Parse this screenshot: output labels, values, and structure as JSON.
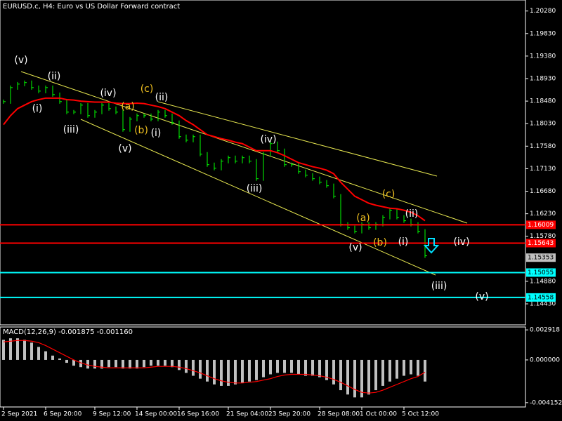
{
  "chart_data": [
    {
      "type": "price",
      "title": "EURUSD.c, H4:  Euro vs US Dollar Forward contract",
      "categories": [
        "2 Sep 2021",
        null,
        null,
        null,
        null,
        null,
        "6 Sep 20:00",
        null,
        null,
        null,
        null,
        null,
        null,
        "9 Sep 12:00",
        null,
        null,
        null,
        null,
        null,
        "14 Sep 00:00",
        null,
        null,
        null,
        null,
        null,
        "16 Sep 16:00",
        null,
        null,
        null,
        null,
        null,
        null,
        "21 Sep 04:00",
        null,
        null,
        null,
        null,
        null,
        "23 Sep 20:00",
        null,
        null,
        null,
        null,
        null,
        null,
        "28 Sep 08:00",
        null,
        null,
        null,
        null,
        null,
        "1 Oct 00:00",
        null,
        null,
        null,
        null,
        null,
        "5 Oct 12:00",
        null,
        null,
        null
      ],
      "series": [
        {
          "color": "#00ff00",
          "values": [
            1.1847,
            1.1875,
            1.1882,
            1.1885,
            1.1875,
            1.1868,
            1.1875,
            1.1861,
            1.1847,
            1.1826,
            1.1826,
            1.184,
            1.1819,
            1.1826,
            1.184,
            1.1833,
            1.1826,
            1.1791,
            1.1812,
            1.1819,
            1.1819,
            1.1812,
            1.1826,
            1.1819,
            1.1805,
            1.1777,
            1.177,
            1.1777,
            1.1742,
            1.1721,
            1.1714,
            1.1728,
            1.1735,
            1.1728,
            1.1735,
            1.1728,
            1.1693,
            1.1742,
            1.1763,
            1.1749,
            1.1721,
            1.1721,
            1.1707,
            1.17,
            1.1693,
            1.1686,
            1.1679,
            1.1658,
            1.1602,
            1.1595,
            1.1588,
            1.1602,
            1.1595,
            1.1602,
            1.1616,
            1.163,
            1.1616,
            1.1609,
            1.1602,
            1.1588,
            1.1539
          ]
        },
        {
          "color": "#ff0000",
          "values": [
            1.1801,
            1.1819,
            1.1833,
            1.184,
            1.1847,
            1.1851,
            1.1854,
            1.1854,
            1.1854,
            1.1851,
            1.185,
            1.1848,
            1.1847,
            1.1846,
            1.1846,
            1.1846,
            1.1844,
            1.1843,
            1.1843,
            1.1844,
            1.1843,
            1.184,
            1.1837,
            1.1833,
            1.1826,
            1.1819,
            1.1809,
            1.1801,
            1.1791,
            1.1781,
            1.1777,
            1.1773,
            1.177,
            1.1766,
            1.1763,
            1.1756,
            1.1749,
            1.1749,
            1.1749,
            1.1745,
            1.1739,
            1.1732,
            1.1725,
            1.1721,
            1.1717,
            1.1714,
            1.171,
            1.1703,
            1.1686,
            1.1672,
            1.1658,
            1.1651,
            1.1644,
            1.164,
            1.1637,
            1.1634,
            1.1633,
            1.163,
            1.1626,
            1.1619,
            1.1609
          ]
        }
      ],
      "ylim": [
        1.1401,
        1.205
      ],
      "yticks": [
        {
          "value": 1.2028,
          "label": "1.20280"
        },
        {
          "value": 1.1983,
          "label": "1.19830"
        },
        {
          "value": 1.1938,
          "label": "1.19380"
        },
        {
          "value": 1.1893,
          "label": "1.18930"
        },
        {
          "value": 1.1848,
          "label": "1.18480"
        },
        {
          "value": 1.1803,
          "label": "1.18030"
        },
        {
          "value": 1.1758,
          "label": "1.17580"
        },
        {
          "value": 1.1713,
          "label": "1.17130"
        },
        {
          "value": 1.1668,
          "label": "1.16680"
        },
        {
          "value": 1.1623,
          "label": "1.16230"
        },
        {
          "value": 1.1578,
          "label": "1.15780"
        },
        {
          "value": 1.1488,
          "label": "1.14880"
        },
        {
          "value": 1.1443,
          "label": "1.14430"
        }
      ],
      "levels": [
        {
          "value": 1.16009,
          "color": "#ff0000"
        },
        {
          "value": 1.15643,
          "color": "#ff0000"
        },
        {
          "value": 1.15055,
          "color": "#00ffff"
        },
        {
          "value": 1.14558,
          "color": "#00ffff"
        }
      ],
      "last_price": 1.15353,
      "annotations": [
        {
          "text": "(v)",
          "color": "#ffffff"
        },
        {
          "text": "(ii)",
          "color": "#ffffff"
        },
        {
          "text": "(i)",
          "color": "#ffffff"
        },
        {
          "text": "(iii)",
          "color": "#ffffff"
        },
        {
          "text": "(iv)",
          "color": "#ffffff"
        },
        {
          "text": "(c)",
          "color": "#f0c020"
        },
        {
          "text": "(ii)",
          "color": "#ffffff"
        },
        {
          "text": "(a)",
          "color": "#f0c020"
        },
        {
          "text": "(b)",
          "color": "#f0c020"
        },
        {
          "text": "(i)",
          "color": "#ffffff"
        },
        {
          "text": "(v)",
          "color": "#ffffff"
        },
        {
          "text": "(iv)",
          "color": "#ffffff"
        },
        {
          "text": "(iii)",
          "color": "#ffffff"
        },
        {
          "text": "(c)",
          "color": "#f0c020"
        },
        {
          "text": "(a)",
          "color": "#f0c020"
        },
        {
          "text": "(ii)",
          "color": "#ffffff"
        },
        {
          "text": "(b)",
          "color": "#f0c020"
        },
        {
          "text": "(i)",
          "color": "#ffffff"
        },
        {
          "text": "(v)",
          "color": "#ffffff"
        },
        {
          "text": "(iv)",
          "color": "#ffffff"
        },
        {
          "text": "(iii)",
          "color": "#ffffff"
        },
        {
          "text": "(v)",
          "color": "#ffffff"
        }
      ]
    },
    {
      "type": "macd",
      "title": "MACD(12,26,9) -0.001875 -0.001160",
      "series": [
        {
          "color": "#c0c0c0",
          "values": [
            0.00196,
            0.0021,
            0.0021,
            0.00196,
            0.00168,
            0.00126,
            0.00084,
            0.00042,
            0.00014,
            -0.00028,
            -0.00056,
            -0.0007,
            -0.00084,
            -0.00084,
            -0.00084,
            -0.0007,
            -0.0007,
            -0.00084,
            -0.00084,
            -0.00084,
            -0.0007,
            -0.00056,
            -0.00056,
            -0.00056,
            -0.0007,
            -0.00098,
            -0.00126,
            -0.00154,
            -0.00182,
            -0.0021,
            -0.00238,
            -0.00252,
            -0.00252,
            -0.00238,
            -0.00224,
            -0.0021,
            -0.00196,
            -0.00168,
            -0.0014,
            -0.00126,
            -0.00126,
            -0.00126,
            -0.0014,
            -0.00154,
            -0.00154,
            -0.00168,
            -0.00196,
            -0.00238,
            -0.00294,
            -0.00336,
            -0.00364,
            -0.00364,
            -0.00336,
            -0.00294,
            -0.00252,
            -0.0021,
            -0.00182,
            -0.00154,
            -0.0014,
            -0.00154,
            -0.0021
          ]
        },
        {
          "color": "#ff0000",
          "values": [
            0.00175,
            0.00182,
            0.00189,
            0.00189,
            0.00182,
            0.00168,
            0.0014,
            0.00105,
            0.0007,
            0.00035,
            0,
            -0.00028,
            -0.00049,
            -0.00063,
            -0.0007,
            -0.00077,
            -0.00077,
            -0.00077,
            -0.00077,
            -0.00077,
            -0.00077,
            -0.0007,
            -0.00063,
            -0.00063,
            -0.00063,
            -0.0007,
            -0.00084,
            -0.00105,
            -0.00126,
            -0.00154,
            -0.00182,
            -0.00203,
            -0.00217,
            -0.00224,
            -0.00224,
            -0.00217,
            -0.0021,
            -0.00196,
            -0.00182,
            -0.00161,
            -0.00147,
            -0.0014,
            -0.0014,
            -0.0014,
            -0.00147,
            -0.00154,
            -0.00168,
            -0.00189,
            -0.00217,
            -0.00252,
            -0.00287,
            -0.00315,
            -0.00322,
            -0.00315,
            -0.00294,
            -0.00266,
            -0.00238,
            -0.0021,
            -0.00182,
            -0.00161,
            -0.00119
          ]
        }
      ],
      "ylim": [
        -0.00457,
        0.0032
      ],
      "yticks": [
        0.002918,
        {
          "value": 0,
          "label": "0.000000"
        },
        -0.004152
      ]
    }
  ]
}
